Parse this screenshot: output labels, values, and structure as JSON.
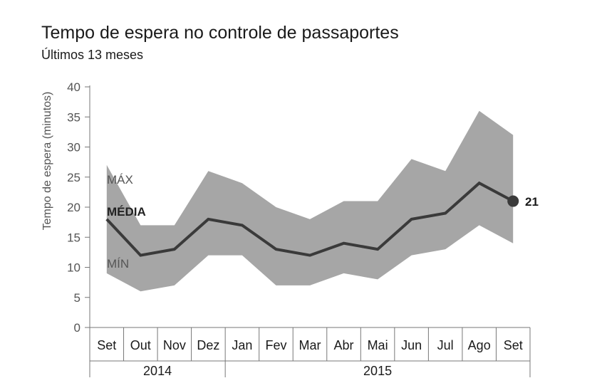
{
  "chart_data": {
    "type": "area",
    "title": "Tempo de espera no controle de passaportes",
    "subtitle": "Últimos 13 meses",
    "ylabel": "Tempo de espera (minutos)",
    "xlabel": "",
    "ylim": [
      0,
      40
    ],
    "yticks": [
      0,
      5,
      10,
      15,
      20,
      25,
      30,
      35,
      40
    ],
    "categories": [
      "Set",
      "Out",
      "Nov",
      "Dez",
      "Jan",
      "Fev",
      "Mar",
      "Abr",
      "Mai",
      "Jun",
      "Jul",
      "Ago",
      "Set"
    ],
    "year_groups": [
      {
        "label": "2014",
        "from": 0,
        "to": 3
      },
      {
        "label": "2015",
        "from": 4,
        "to": 12
      }
    ],
    "series": [
      {
        "name": "MÁX",
        "values": [
          27,
          17,
          17,
          26,
          24,
          20,
          18,
          21,
          21,
          28,
          26,
          36,
          32
        ]
      },
      {
        "name": "MÉDIA",
        "values": [
          18,
          12,
          13,
          18,
          17,
          13,
          12,
          14,
          13,
          18,
          19,
          24,
          21
        ]
      },
      {
        "name": "MÍN",
        "values": [
          9,
          6,
          7,
          12,
          12,
          7,
          7,
          9,
          8,
          12,
          13,
          17,
          14
        ]
      }
    ],
    "end_label": "21",
    "grid": false,
    "colors": {
      "band": "#a6a6a6",
      "line": "#3a3a3a",
      "axis": "#777777"
    }
  }
}
